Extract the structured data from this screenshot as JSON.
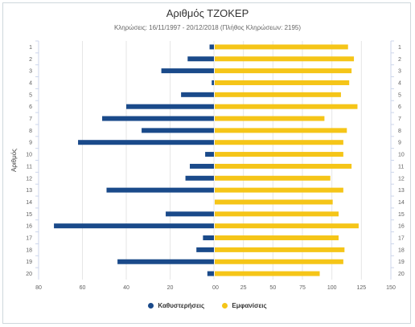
{
  "title": "Αριθμός ΤΖΟΚΕΡ",
  "subtitle": "Κληρώσεις: 16/11/1997 - 20/12/2018 (Πλήθος Κληρώσεων: 2195)",
  "colors": {
    "delay": "#1a4a8a",
    "appear": "#f5c518",
    "grid": "#e6e6e6",
    "axis": "#ccd6eb",
    "label": "#606060"
  },
  "chart_data": {
    "type": "bar",
    "orientation": "horizontal-diverging",
    "categories": [
      "1",
      "2",
      "3",
      "4",
      "5",
      "6",
      "7",
      "8",
      "9",
      "10",
      "11",
      "12",
      "13",
      "14",
      "15",
      "16",
      "17",
      "18",
      "19",
      "20"
    ],
    "ylabel": "Αριθμός",
    "x_left": {
      "ticks": [
        "80",
        "60",
        "40",
        "20",
        "0"
      ],
      "max": 80
    },
    "x_right": {
      "ticks": [
        "0",
        "25",
        "50",
        "75",
        "100",
        "125",
        "150"
      ],
      "max": 150
    },
    "series": [
      {
        "name": "Καθυστερήσεις",
        "side": "left",
        "values": [
          2,
          12,
          24,
          1,
          15,
          40,
          51,
          33,
          62,
          4,
          11,
          13,
          49,
          0,
          22,
          73,
          5,
          8,
          44,
          3
        ]
      },
      {
        "name": "Εμφανίσεις",
        "side": "right",
        "values": [
          113,
          118,
          116,
          114,
          107,
          121,
          93,
          112,
          109,
          109,
          116,
          98,
          109,
          100,
          105,
          122,
          105,
          110,
          109,
          89
        ]
      }
    ]
  }
}
